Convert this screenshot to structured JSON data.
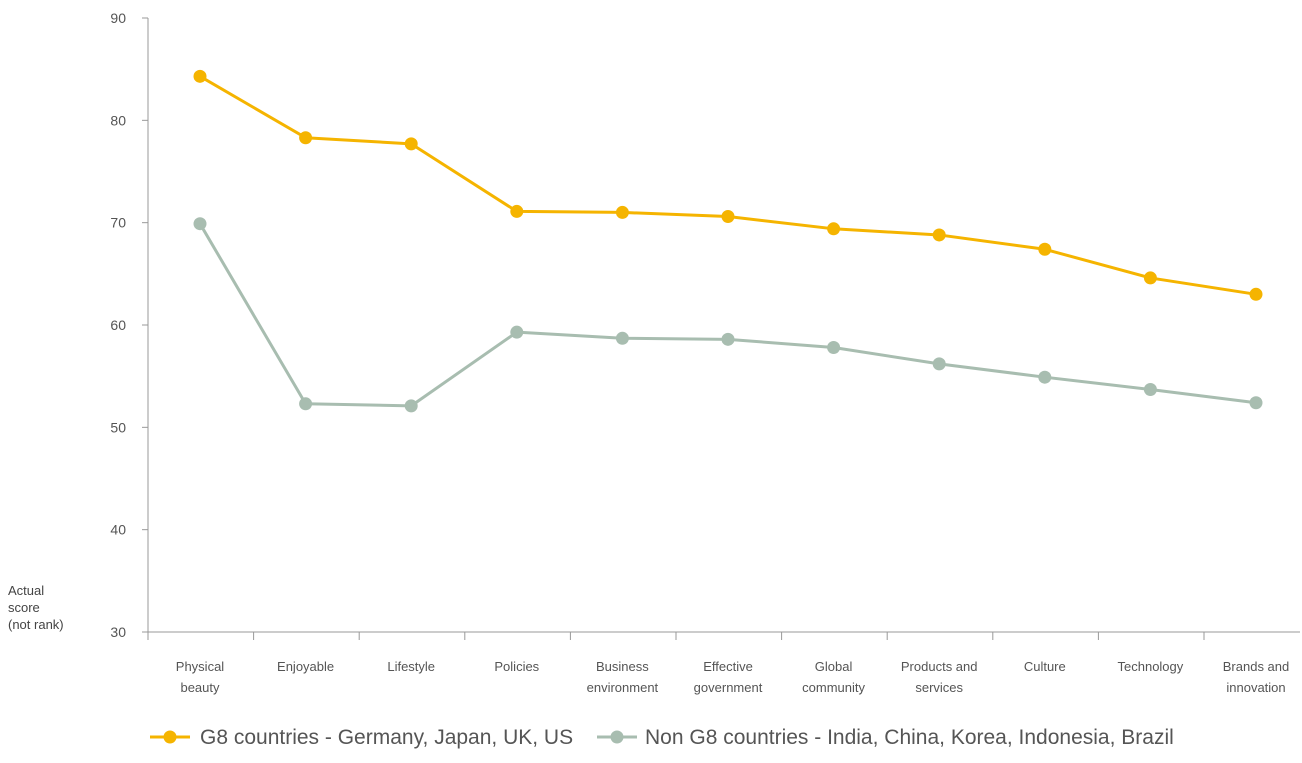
{
  "chart_data": {
    "type": "line",
    "title": "",
    "xlabel": "",
    "ylabel": [
      "Actual",
      "score",
      "(not rank)"
    ],
    "ylim": [
      30,
      90
    ],
    "yticks": [
      30,
      40,
      50,
      60,
      70,
      80,
      90
    ],
    "grid": false,
    "legend_position": "bottom",
    "categories": [
      [
        "Physical",
        "beauty"
      ],
      [
        "Enjoyable"
      ],
      [
        "Lifestyle"
      ],
      [
        "Policies"
      ],
      [
        "Business",
        "environment"
      ],
      [
        "Effective",
        "government"
      ],
      [
        "Global",
        "community"
      ],
      [
        "Products and",
        "services"
      ],
      [
        "Culture"
      ],
      [
        "Technology"
      ],
      [
        "Brands and",
        "innovation"
      ]
    ],
    "series": [
      {
        "name": "G8 countries - Germany, Japan, UK, US",
        "color": "#f5b400",
        "values": [
          84.3,
          78.3,
          77.7,
          71.1,
          71.0,
          70.6,
          69.4,
          68.8,
          67.4,
          64.6,
          63.0
        ]
      },
      {
        "name": "Non G8 countries - India, China, Korea, Indonesia, Brazil",
        "color": "#a8bdb0",
        "values": [
          69.9,
          52.3,
          52.1,
          59.3,
          58.7,
          58.6,
          57.8,
          56.2,
          54.9,
          53.7,
          52.4
        ]
      }
    ]
  }
}
